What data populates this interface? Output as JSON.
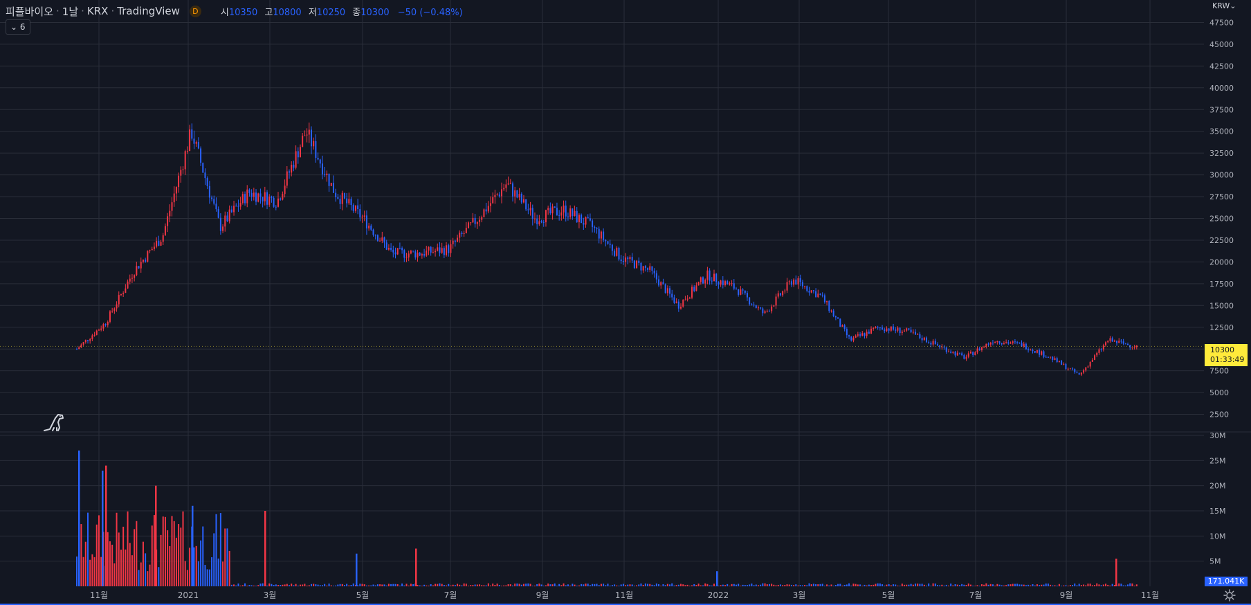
{
  "header": {
    "symbol": "피플바이오",
    "interval": "1날",
    "exchange": "KRX",
    "source": "TradingView",
    "badge": "D",
    "ohlc": {
      "open_label": "시",
      "open": "10350",
      "high_label": "고",
      "high": "10800",
      "low_label": "저",
      "low": "10250",
      "close_label": "종",
      "close": "10300",
      "change": "−50 (−0.48%)"
    },
    "collapse_count": "6"
  },
  "currency": "KRW",
  "last_price_label": {
    "price": "10300",
    "countdown": "01:33:49"
  },
  "volume_label": "171.041K",
  "colors": {
    "up": "#f23645",
    "down": "#2962ff",
    "background": "#131722",
    "grid": "#2a2e39",
    "price_label_bg": "#ffeb3b"
  },
  "icons": {
    "logo": "dinosaur-logo-icon",
    "settings": "gear-icon",
    "collapse": "chevron-down-icon"
  },
  "chart_data": [
    {
      "type": "candlestick",
      "name": "피플바이오 1날 KRX",
      "y_ticks": [
        "47500",
        "45000",
        "42500",
        "40000",
        "37500",
        "35000",
        "32500",
        "30000",
        "27500",
        "25000",
        "22500",
        "20000",
        "17500",
        "15000",
        "12500",
        "10000",
        "7500",
        "5000",
        "2500"
      ],
      "x_ticks": [
        "11월",
        "2021",
        "3월",
        "5월",
        "7월",
        "9월",
        "11월",
        "2022",
        "3월",
        "5월",
        "7월",
        "9월",
        "11월"
      ],
      "ylim": [
        0,
        48000
      ],
      "approx_close_path": [
        {
          "date": "2020-10",
          "close": 10000
        },
        {
          "date": "2020-10",
          "close": 13000
        },
        {
          "date": "2020-10",
          "close": 19000
        },
        {
          "date": "2020-11",
          "close": 23000
        },
        {
          "date": "2020-11",
          "close": 35000
        },
        {
          "date": "2020-11",
          "close": 24000
        },
        {
          "date": "2020-12",
          "close": 28000
        },
        {
          "date": "2020-12",
          "close": 27000
        },
        {
          "date": "2021-01",
          "close": 35000
        },
        {
          "date": "2021-01",
          "close": 28000
        },
        {
          "date": "2021-02",
          "close": 25000
        },
        {
          "date": "2021-02",
          "close": 21000
        },
        {
          "date": "2021-03",
          "close": 21000
        },
        {
          "date": "2021-04",
          "close": 21500
        },
        {
          "date": "2021-05",
          "close": 25000
        },
        {
          "date": "2021-06",
          "close": 29000
        },
        {
          "date": "2021-06",
          "close": 25000
        },
        {
          "date": "2021-07",
          "close": 26000
        },
        {
          "date": "2021-08",
          "close": 24000
        },
        {
          "date": "2021-09",
          "close": 20500
        },
        {
          "date": "2021-10",
          "close": 19000
        },
        {
          "date": "2021-10",
          "close": 15000
        },
        {
          "date": "2021-11",
          "close": 18500
        },
        {
          "date": "2021-11",
          "close": 17000
        },
        {
          "date": "2021-12",
          "close": 14000
        },
        {
          "date": "2021-12",
          "close": 18000
        },
        {
          "date": "2022-01",
          "close": 16000
        },
        {
          "date": "2022-02",
          "close": 11000
        },
        {
          "date": "2022-03",
          "close": 12500
        },
        {
          "date": "2022-04",
          "close": 12000
        },
        {
          "date": "2022-05",
          "close": 10500
        },
        {
          "date": "2022-06",
          "close": 9000
        },
        {
          "date": "2022-07",
          "close": 11000
        },
        {
          "date": "2022-08",
          "close": 10500
        },
        {
          "date": "2022-09",
          "close": 9000
        },
        {
          "date": "2022-10",
          "close": 7000
        },
        {
          "date": "2022-10",
          "close": 11000
        },
        {
          "date": "2022-10",
          "close": 10300
        }
      ]
    },
    {
      "type": "bar",
      "name": "Volume",
      "y_ticks": [
        "30M",
        "25M",
        "20M",
        "15M",
        "10M",
        "5M"
      ],
      "ylim": [
        0,
        30000000
      ],
      "spikes": [
        {
          "date": "2020-10",
          "value": 27000000
        },
        {
          "date": "2020-11",
          "value": 24000000
        },
        {
          "date": "2020-11",
          "value": 23000000
        },
        {
          "date": "2020-12",
          "value": 20000000
        },
        {
          "date": "2021-01",
          "value": 16000000
        },
        {
          "date": "2021-02",
          "value": 15000000
        },
        {
          "date": "2021-05",
          "value": 6500000
        },
        {
          "date": "2021-06",
          "value": 7500000
        },
        {
          "date": "2022-01",
          "value": 3000000
        },
        {
          "date": "2022-10",
          "value": 5500000
        }
      ]
    }
  ]
}
